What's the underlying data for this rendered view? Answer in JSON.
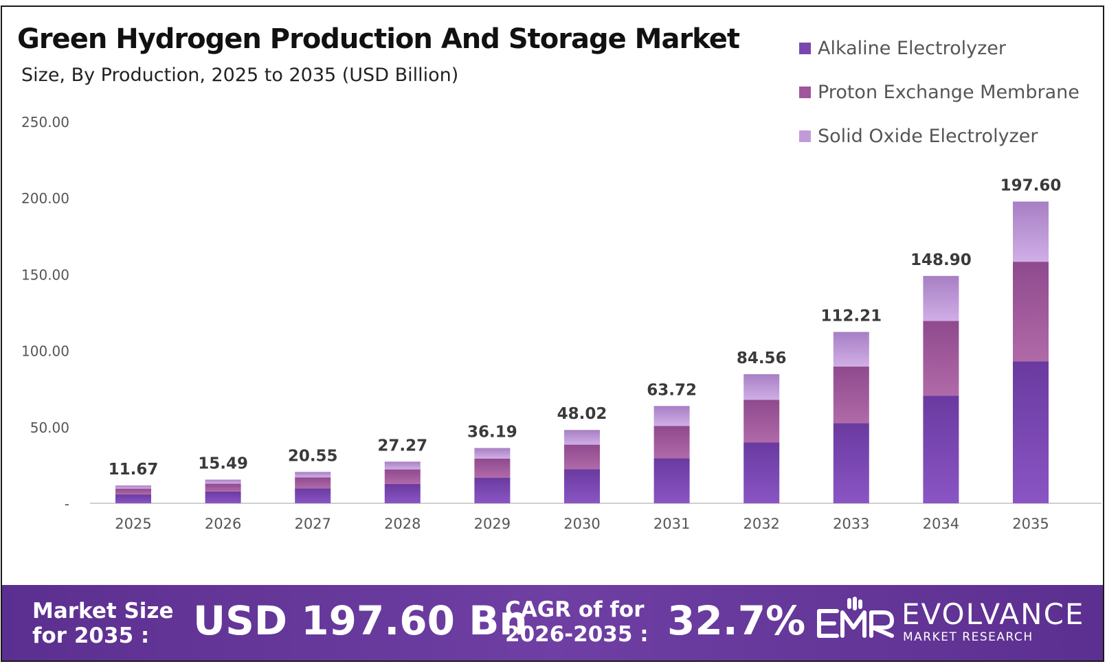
{
  "title": "Green Hydrogen Production And Storage Market",
  "subtitle": "Size, By Production, 2025 to 2035 (USD Billion)",
  "colors": {
    "alkaline": "#7b45b0",
    "pem": "#a0569a",
    "solid_oxide": "#c29ad8",
    "footer": "#5f3394"
  },
  "chart_data": {
    "type": "bar",
    "stacked": true,
    "categories": [
      "2025",
      "2026",
      "2027",
      "2028",
      "2029",
      "2030",
      "2031",
      "2032",
      "2033",
      "2034",
      "2035"
    ],
    "series": [
      {
        "name": "Alkaline Electrolyzer",
        "values": [
          5.8,
          7.7,
          9.8,
          12.6,
          16.8,
          22.4,
          29.5,
          39.8,
          52.4,
          70.5,
          93.0
        ]
      },
      {
        "name": "Proton Exchange Membrane",
        "values": [
          3.8,
          5.2,
          7.2,
          9.6,
          12.5,
          16.0,
          21.2,
          28.0,
          37.2,
          48.9,
          65.2
        ]
      },
      {
        "name": "Solid Oxide Electrolyzer",
        "values": [
          2.07,
          2.59,
          3.55,
          5.07,
          6.89,
          9.62,
          13.02,
          16.76,
          22.61,
          29.5,
          39.4
        ]
      }
    ],
    "totals": [
      "11.67",
      "15.49",
      "20.55",
      "27.27",
      "36.19",
      "48.02",
      "63.72",
      "84.56",
      "112.21",
      "148.90",
      "197.60"
    ],
    "y_ticks": [
      "-",
      "50.00",
      "100.00",
      "150.00",
      "200.00",
      "250.00"
    ],
    "y_tick_values": [
      0,
      50,
      100,
      150,
      200,
      250
    ],
    "ylim": [
      0,
      250
    ],
    "grid": false,
    "legend_position": "top-right"
  },
  "footer": {
    "market_size_label_line1": "Market Size",
    "market_size_label_line2": "for 2035 :",
    "market_size_value": "USD 197.60 Bn",
    "cagr_label_line1": "CAGR of for",
    "cagr_label_line2": "2026-2035 :",
    "cagr_value": "32.7%",
    "logo_text": "EVOLVANCE",
    "logo_subtext": "MARKET RESEARCH"
  }
}
